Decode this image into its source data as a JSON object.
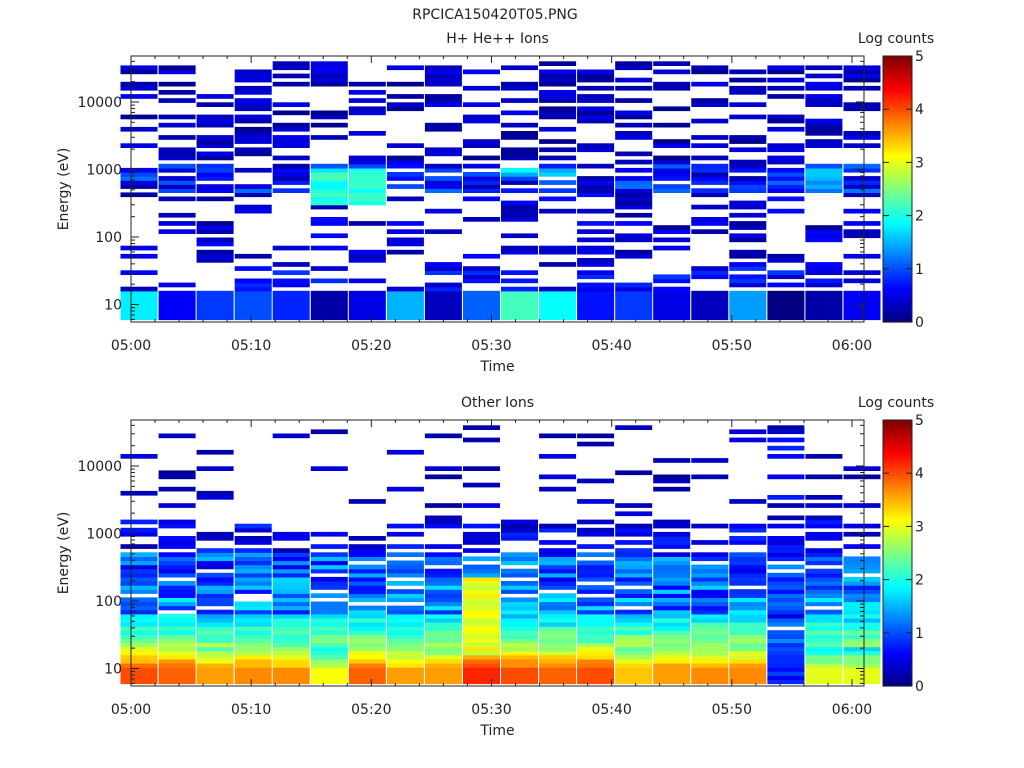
{
  "figure_title": "RPCICA150420T05.PNG",
  "chart_data": [
    {
      "type": "heatmap",
      "title": "H+ He++ Ions",
      "xlabel": "Time",
      "ylabel": "Energy (eV)",
      "y_scale": "log",
      "ylim": [
        5.5,
        48000
      ],
      "x_range": [
        "05:00",
        "06:01"
      ],
      "x_ticks": [
        "05:00",
        "05:10",
        "05:20",
        "05:30",
        "05:40",
        "05:50",
        "06:00"
      ],
      "y_ticks": [
        10,
        100,
        1000,
        10000
      ],
      "y_tick_labels": [
        "10",
        "100",
        "1000",
        "10000"
      ],
      "colorbar": {
        "label": "Log counts",
        "min": 0,
        "max": 5,
        "ticks": [
          "0",
          "1",
          "2",
          "3",
          "4",
          "5"
        ],
        "colormap": "jet"
      },
      "time_bins": [
        "05:00:40",
        "05:03:50",
        "05:07:00",
        "05:10:10",
        "05:13:20",
        "05:16:30",
        "05:19:40",
        "05:22:50",
        "05:26:00",
        "05:29:10",
        "05:32:20",
        "05:35:30",
        "05:38:40",
        "05:41:50",
        "05:45:00",
        "05:48:10",
        "05:51:20",
        "05:54:30",
        "05:57:40",
        "06:00:50"
      ],
      "low_energy_band_log_counts": [
        1.8,
        0.6,
        0.9,
        1.0,
        0.8,
        0.2,
        0.5,
        1.5,
        0.3,
        1.1,
        2.2,
        1.9,
        0.7,
        0.9,
        0.5,
        0.3,
        1.4,
        0.0,
        0.2,
        0.6
      ],
      "notable_features": [
        {
          "time": "05:18",
          "energy_range_eV": [
            300,
            1000
          ],
          "log_counts": 2.0
        },
        {
          "time": "05:34",
          "energy_range_eV": [
            700,
            1000
          ],
          "log_counts": 1.7
        },
        {
          "time": "05:57",
          "energy_range_eV": [
            500,
            1000
          ],
          "log_counts": 1.4
        }
      ]
    },
    {
      "type": "heatmap",
      "title": "Other Ions",
      "xlabel": "Time",
      "ylabel": "Energy (eV)",
      "y_scale": "log",
      "ylim": [
        5.5,
        48000
      ],
      "x_range": [
        "05:00",
        "06:01"
      ],
      "x_ticks": [
        "05:00",
        "05:10",
        "05:20",
        "05:30",
        "05:40",
        "05:50",
        "06:00"
      ],
      "y_ticks": [
        10,
        100,
        1000,
        10000
      ],
      "y_tick_labels": [
        "10",
        "100",
        "1000",
        "10000"
      ],
      "colorbar": {
        "label": "Log counts",
        "min": 0,
        "max": 5,
        "ticks": [
          "0",
          "1",
          "2",
          "3",
          "4",
          "5"
        ],
        "colormap": "jet"
      },
      "time_bins": [
        "05:00:40",
        "05:03:50",
        "05:07:00",
        "05:10:10",
        "05:13:20",
        "05:16:30",
        "05:19:40",
        "05:22:50",
        "05:26:00",
        "05:29:10",
        "05:32:20",
        "05:35:30",
        "05:38:40",
        "05:41:50",
        "05:45:00",
        "05:48:10",
        "05:51:20",
        "05:54:30",
        "05:57:40",
        "06:00:50"
      ],
      "low_energy_band_log_counts": [
        4.0,
        3.9,
        3.6,
        3.7,
        3.7,
        3.1,
        3.9,
        3.6,
        3.6,
        4.2,
        4.0,
        3.9,
        4.0,
        3.4,
        3.6,
        3.7,
        3.7,
        0.8,
        3.0,
        3.0
      ],
      "notable_features": [
        {
          "time": "05:30",
          "energy_range_eV": [
            15,
            200
          ],
          "log_counts": 3.0
        },
        {
          "time": "05:55",
          "energy_range_eV": [
            6,
            20
          ],
          "log_counts": 0.8
        }
      ]
    }
  ]
}
